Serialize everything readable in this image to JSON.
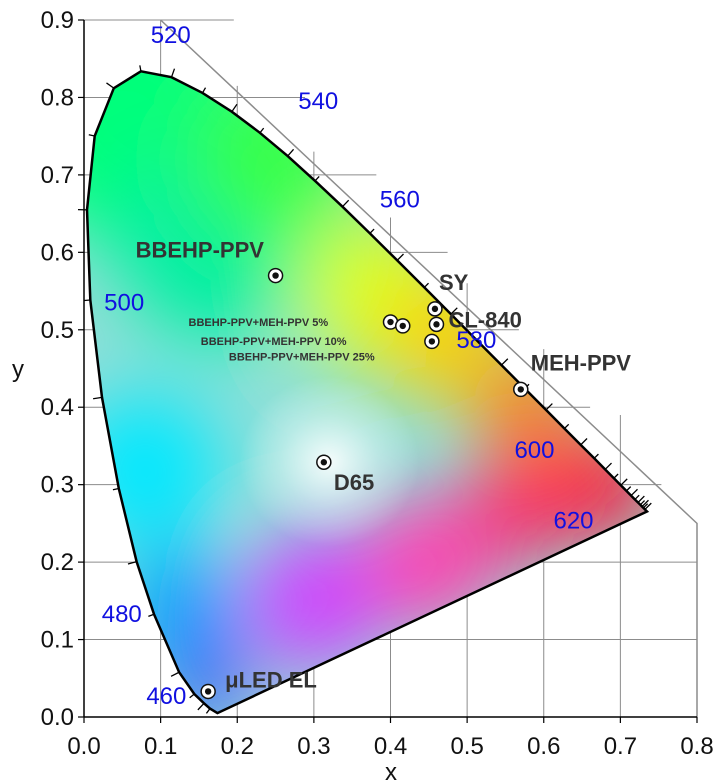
{
  "chart_data": {
    "type": "scatter",
    "title": "",
    "xlabel": "x",
    "ylabel": "y",
    "xlim": [
      0.0,
      0.8
    ],
    "ylim": [
      0.0,
      0.9
    ],
    "x_ticks": [
      "0.0",
      "0.1",
      "0.2",
      "0.3",
      "0.4",
      "0.5",
      "0.6",
      "0.7",
      "0.8"
    ],
    "y_ticks": [
      "0.0",
      "0.1",
      "0.2",
      "0.3",
      "0.4",
      "0.5",
      "0.6",
      "0.7",
      "0.8",
      "0.9"
    ],
    "grid": true,
    "background": "CIE 1931 chromaticity diagram",
    "wavelength_labels": [
      {
        "label": "460",
        "x": 0.144,
        "y": 0.03
      },
      {
        "label": "480",
        "x": 0.091,
        "y": 0.133
      },
      {
        "label": "500",
        "x": 0.008,
        "y": 0.538
      },
      {
        "label": "520",
        "x": 0.074,
        "y": 0.834
      },
      {
        "label": "540",
        "x": 0.23,
        "y": 0.754
      },
      {
        "label": "560",
        "x": 0.373,
        "y": 0.624
      },
      {
        "label": "580",
        "x": 0.512,
        "y": 0.487
      },
      {
        "label": "600",
        "x": 0.627,
        "y": 0.373
      },
      {
        "label": "620",
        "x": 0.691,
        "y": 0.308
      }
    ],
    "points": [
      {
        "label": "BBEHP-PPV",
        "x": 0.25,
        "y": 0.57
      },
      {
        "label": "BBEHP-PPV+MEH-PPV 5%",
        "x": 0.4,
        "y": 0.51
      },
      {
        "label": "BBEHP-PPV+MEH-PPV 10%",
        "x": 0.416,
        "y": 0.505
      },
      {
        "label": "BBEHP-PPV+MEH-PPV 25%",
        "x": 0.454,
        "y": 0.485
      },
      {
        "label": "SY",
        "x": 0.458,
        "y": 0.527
      },
      {
        "label": "CL-840",
        "x": 0.46,
        "y": 0.507
      },
      {
        "label": "MEH-PPV",
        "x": 0.57,
        "y": 0.423
      },
      {
        "label": "D65",
        "x": 0.313,
        "y": 0.329
      },
      {
        "label": "μLED EL",
        "x": 0.162,
        "y": 0.033
      }
    ]
  },
  "colors": {
    "wavelength_label": "#1010e0",
    "point_label": "#333333",
    "grid": "#8c8c8c",
    "frame": "#000000"
  }
}
